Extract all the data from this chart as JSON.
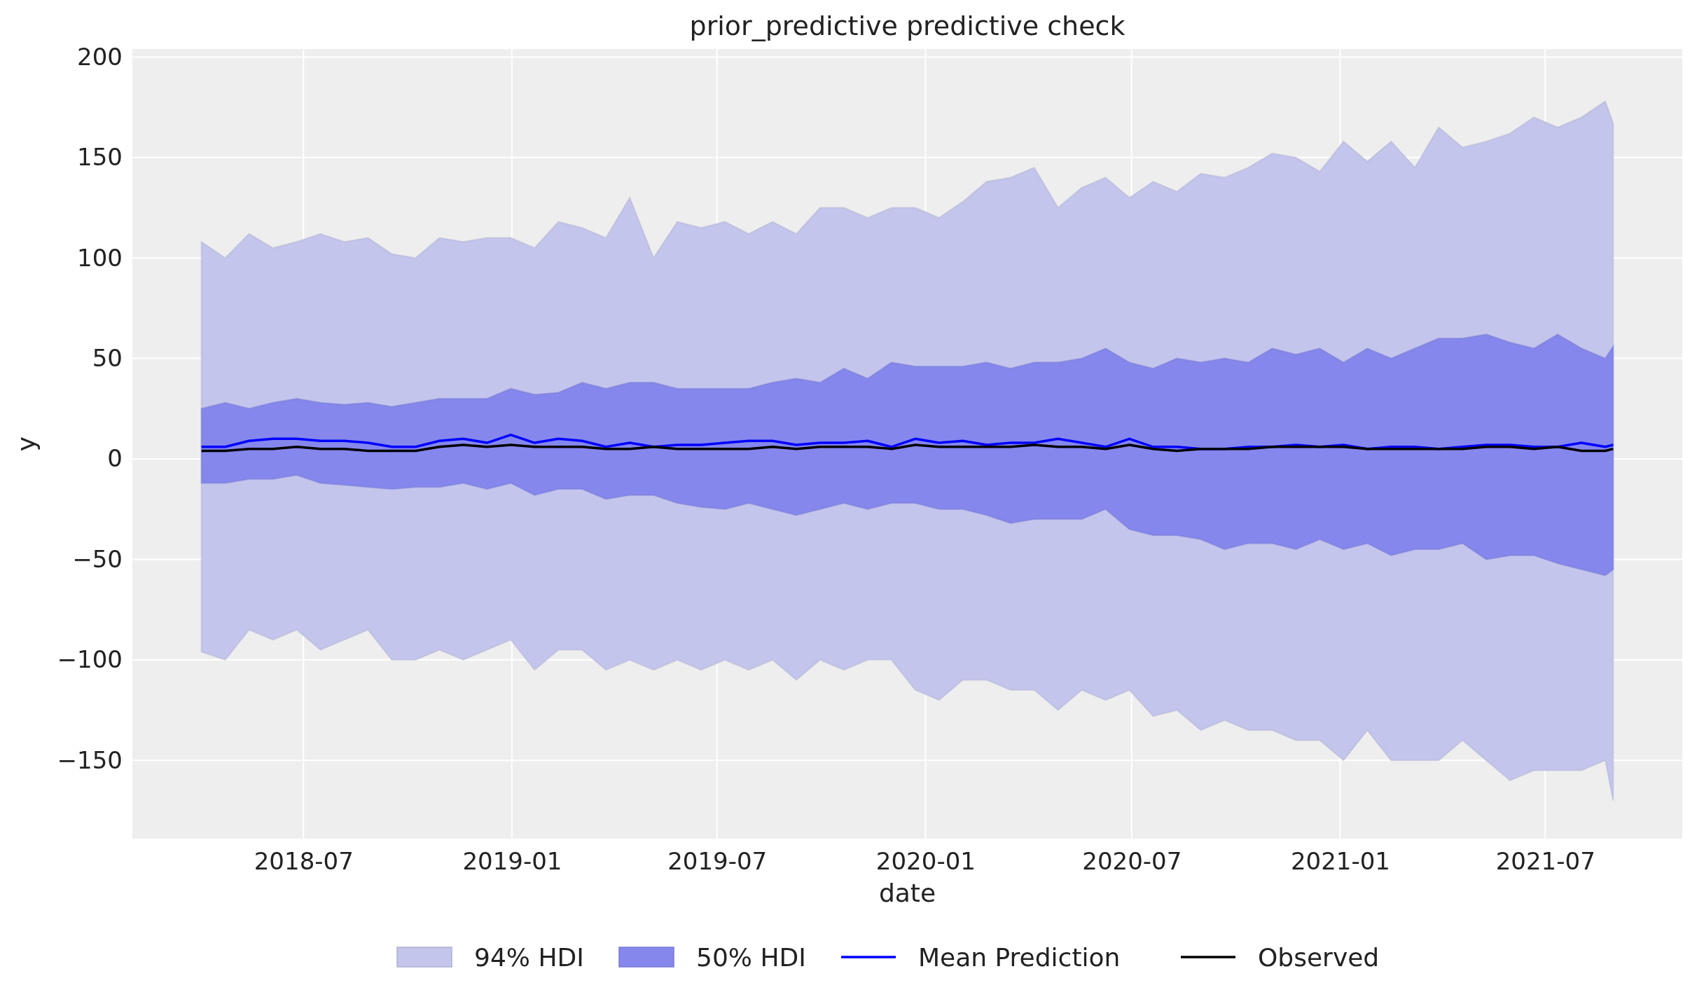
{
  "chart_data": {
    "type": "line",
    "title": "prior_predictive predictive check",
    "xlabel": "date",
    "ylabel": "y",
    "x": [
      "2018-04-02",
      "2018-04-23",
      "2018-05-14",
      "2018-06-04",
      "2018-06-25",
      "2018-07-16",
      "2018-08-06",
      "2018-08-27",
      "2018-09-17",
      "2018-10-08",
      "2018-10-29",
      "2018-11-19",
      "2018-12-10",
      "2018-12-31",
      "2019-01-21",
      "2019-02-11",
      "2019-03-04",
      "2019-03-25",
      "2019-04-15",
      "2019-05-06",
      "2019-05-27",
      "2019-06-17",
      "2019-07-08",
      "2019-07-29",
      "2019-08-19",
      "2019-09-09",
      "2019-09-30",
      "2019-10-21",
      "2019-11-11",
      "2019-12-02",
      "2019-12-23",
      "2020-01-13",
      "2020-02-03",
      "2020-02-24",
      "2020-03-16",
      "2020-04-06",
      "2020-04-27",
      "2020-05-18",
      "2020-06-08",
      "2020-06-29",
      "2020-07-20",
      "2020-08-10",
      "2020-08-31",
      "2020-09-21",
      "2020-10-12",
      "2020-11-02",
      "2020-11-23",
      "2020-12-14",
      "2021-01-04",
      "2021-01-25",
      "2021-02-15",
      "2021-03-08",
      "2021-03-29",
      "2021-04-19",
      "2021-05-10",
      "2021-05-31",
      "2021-06-21",
      "2021-07-12",
      "2021-08-02",
      "2021-08-23",
      "2021-08-30"
    ],
    "series": [
      {
        "name": "94% HDI",
        "type": "area",
        "color": "#c4c5ec",
        "values": [
          null,
          null,
          null,
          null,
          null,
          null,
          null,
          null,
          null,
          null,
          null,
          null,
          null,
          null,
          null,
          null,
          null,
          null,
          null,
          null,
          null,
          null,
          null,
          null,
          null,
          null,
          null,
          null,
          null,
          null,
          null,
          null,
          null,
          null,
          null,
          null,
          null,
          null,
          null,
          null,
          null,
          null,
          null,
          null,
          null,
          null,
          null,
          null,
          null,
          null,
          null,
          null,
          null,
          null,
          null,
          null,
          null,
          null,
          null,
          null,
          null
        ],
        "lower": [
          -96,
          -100,
          -85,
          -90,
          -85,
          -95,
          -90,
          -85,
          -100,
          -100,
          -95,
          -100,
          -95,
          -90,
          -105,
          -95,
          -95,
          -105,
          -100,
          -105,
          -100,
          -105,
          -100,
          -105,
          -100,
          -110,
          -100,
          -105,
          -100,
          -100,
          -115,
          -120,
          -110,
          -110,
          -115,
          -115,
          -125,
          -115,
          -120,
          -115,
          -128,
          -125,
          -135,
          -130,
          -135,
          -135,
          -140,
          -140,
          -150,
          -135,
          -150,
          -150,
          -150,
          -140,
          -150,
          -160,
          -155,
          -155,
          -155,
          -150,
          -170
        ],
        "upper": [
          108,
          100,
          112,
          105,
          108,
          112,
          108,
          110,
          102,
          100,
          110,
          108,
          110,
          110,
          105,
          118,
          115,
          110,
          130,
          100,
          118,
          115,
          118,
          112,
          118,
          112,
          125,
          125,
          120,
          125,
          125,
          120,
          128,
          138,
          140,
          145,
          125,
          135,
          140,
          130,
          138,
          133,
          142,
          140,
          145,
          152,
          150,
          143,
          158,
          148,
          158,
          145,
          165,
          155,
          158,
          162,
          170,
          165,
          170,
          178,
          167
        ]
      },
      {
        "name": "50% HDI",
        "type": "area",
        "color": "#8587ec",
        "values": [
          null,
          null,
          null,
          null,
          null,
          null,
          null,
          null,
          null,
          null,
          null,
          null,
          null,
          null,
          null,
          null,
          null,
          null,
          null,
          null,
          null,
          null,
          null,
          null,
          null,
          null,
          null,
          null,
          null,
          null,
          null,
          null,
          null,
          null,
          null,
          null,
          null,
          null,
          null,
          null,
          null,
          null,
          null,
          null,
          null,
          null,
          null,
          null,
          null,
          null,
          null,
          null,
          null,
          null,
          null,
          null,
          null,
          null,
          null,
          null,
          null
        ],
        "lower": [
          -12,
          -12,
          -10,
          -10,
          -8,
          -12,
          -13,
          -14,
          -15,
          -14,
          -14,
          -12,
          -15,
          -12,
          -18,
          -15,
          -15,
          -20,
          -18,
          -18,
          -22,
          -24,
          -25,
          -22,
          -25,
          -28,
          -25,
          -22,
          -25,
          -22,
          -22,
          -25,
          -25,
          -28,
          -32,
          -30,
          -30,
          -30,
          -25,
          -35,
          -38,
          -38,
          -40,
          -45,
          -42,
          -42,
          -45,
          -40,
          -45,
          -42,
          -48,
          -45,
          -45,
          -42,
          -50,
          -48,
          -48,
          -52,
          -55,
          -58,
          -55
        ],
        "upper": [
          25,
          28,
          25,
          28,
          30,
          28,
          27,
          28,
          26,
          28,
          30,
          30,
          30,
          35,
          32,
          33,
          38,
          35,
          38,
          38,
          35,
          35,
          35,
          35,
          38,
          40,
          38,
          45,
          40,
          48,
          46,
          46,
          46,
          48,
          45,
          48,
          48,
          50,
          55,
          48,
          45,
          50,
          48,
          50,
          48,
          55,
          52,
          55,
          48,
          55,
          50,
          55,
          60,
          60,
          62,
          58,
          55,
          62,
          55,
          50,
          56
        ]
      },
      {
        "name": "Mean Prediction",
        "color": "#0000ff",
        "values": [
          6,
          6,
          9,
          10,
          10,
          9,
          9,
          8,
          6,
          6,
          9,
          10,
          8,
          12,
          8,
          10,
          9,
          6,
          8,
          6,
          7,
          7,
          8,
          9,
          9,
          7,
          8,
          8,
          9,
          6,
          10,
          8,
          9,
          7,
          8,
          8,
          10,
          8,
          6,
          10,
          6,
          6,
          5,
          5,
          6,
          6,
          7,
          6,
          7,
          5,
          6,
          6,
          5,
          6,
          7,
          7,
          6,
          6,
          8,
          6,
          7
        ]
      },
      {
        "name": "Observed",
        "color": "#000000",
        "values": [
          4,
          4,
          5,
          5,
          6,
          5,
          5,
          4,
          4,
          4,
          6,
          7,
          6,
          7,
          6,
          6,
          6,
          5,
          5,
          6,
          5,
          5,
          5,
          5,
          6,
          5,
          6,
          6,
          6,
          5,
          7,
          6,
          6,
          6,
          6,
          7,
          6,
          6,
          5,
          7,
          5,
          4,
          5,
          5,
          5,
          6,
          6,
          6,
          6,
          5,
          5,
          5,
          5,
          5,
          6,
          6,
          5,
          6,
          4,
          4,
          5
        ]
      }
    ],
    "xlim": [
      "2018-01-31",
      "2021-10-30"
    ],
    "xticks": [
      "2018-07",
      "2019-01",
      "2019-07",
      "2020-01",
      "2020-07",
      "2021-01",
      "2021-07"
    ],
    "ylim": [
      -189,
      204
    ],
    "yticks": [
      {
        "value": -150,
        "label": "−150"
      },
      {
        "value": -100,
        "label": "−100"
      },
      {
        "value": -50,
        "label": "−50"
      },
      0,
      50,
      100,
      150,
      200
    ],
    "grid": true,
    "legend": "bottom",
    "line_style": "solid",
    "marker": "none"
  }
}
